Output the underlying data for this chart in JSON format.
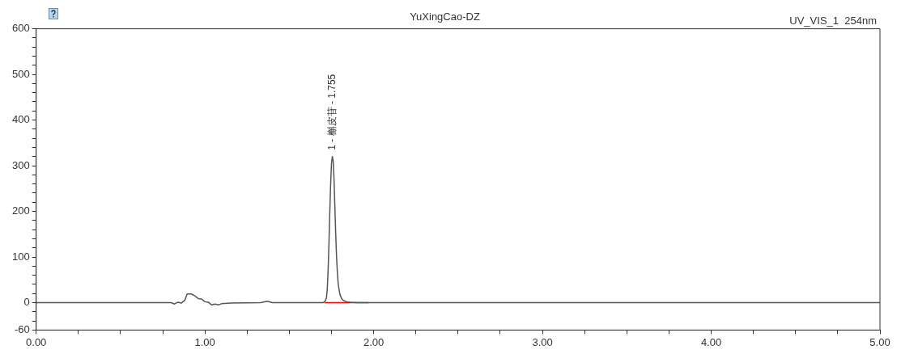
{
  "chart_data": {
    "type": "line",
    "title": "YuXingCao-DZ",
    "annotations": [
      "UV_VIS_1  254nm",
      {
        "text": "1 - 槲皮苷 - 1.755",
        "x": 1.755,
        "y": 320
      }
    ],
    "series": [
      {
        "color": "#555555",
        "x": [
          0,
          0.8,
          0.82,
          0.84,
          0.86,
          0.88,
          0.895,
          0.92,
          0.94,
          0.96,
          0.98,
          1.0,
          1.02,
          1.04,
          1.06,
          1.08,
          1.1,
          1.15,
          1.33,
          1.37,
          1.4,
          1.7,
          1.71,
          1.72,
          1.725,
          1.73,
          1.735,
          1.74,
          1.745,
          1.75,
          1.755,
          1.76,
          1.765,
          1.77,
          1.775,
          1.78,
          1.785,
          1.79,
          1.8,
          1.81,
          1.82,
          1.84,
          1.86,
          1.9,
          5.0
        ],
        "values": [
          0,
          0,
          -3,
          1,
          -1,
          5,
          19,
          19,
          15,
          9,
          8,
          2,
          1,
          -5,
          -3,
          -5,
          -2,
          -1,
          0,
          3,
          0,
          0,
          2,
          10,
          30,
          70,
          130,
          200,
          260,
          305,
          320,
          310,
          270,
          210,
          150,
          100,
          65,
          40,
          18,
          9,
          5,
          2,
          1,
          0,
          0
        ]
      },
      {
        "type": "line",
        "color": "#ff0000",
        "x": [
          1.71,
          1.97
        ],
        "values": [
          0,
          0
        ]
      }
    ],
    "xlim": [
      0,
      5
    ],
    "xticks": [
      {
        "value": 0,
        "label": "0.00"
      },
      {
        "value": 0.25,
        "label": null
      },
      {
        "value": 0.5,
        "label": null
      },
      {
        "value": 0.75,
        "label": null
      },
      {
        "value": 1,
        "label": "1.00"
      },
      {
        "value": 1.25,
        "label": null
      },
      {
        "value": 1.5,
        "label": null
      },
      {
        "value": 1.75,
        "label": null
      },
      {
        "value": 2,
        "label": "2.00"
      },
      {
        "value": 2.25,
        "label": null
      },
      {
        "value": 2.5,
        "label": null
      },
      {
        "value": 2.75,
        "label": null
      },
      {
        "value": 3,
        "label": "3.00"
      },
      {
        "value": 3.25,
        "label": null
      },
      {
        "value": 3.5,
        "label": null
      },
      {
        "value": 3.75,
        "label": null
      },
      {
        "value": 4,
        "label": "4.00"
      },
      {
        "value": 4.25,
        "label": null
      },
      {
        "value": 4.5,
        "label": null
      },
      {
        "value": 4.75,
        "label": null
      },
      {
        "value": 5,
        "label": "5.00"
      }
    ],
    "ylim": [
      -60,
      600
    ],
    "yticks": [
      -60,
      {
        "value": -40,
        "label": null
      },
      {
        "value": -20,
        "label": null
      },
      0,
      {
        "value": 20,
        "label": null
      },
      {
        "value": 40,
        "label": null
      },
      {
        "value": 60,
        "label": null
      },
      {
        "value": 80,
        "label": null
      },
      100,
      {
        "value": 120,
        "label": null
      },
      {
        "value": 140,
        "label": null
      },
      {
        "value": 160,
        "label": null
      },
      {
        "value": 180,
        "label": null
      },
      200,
      {
        "value": 220,
        "label": null
      },
      {
        "value": 240,
        "label": null
      },
      {
        "value": 260,
        "label": null
      },
      {
        "value": 280,
        "label": null
      },
      300,
      {
        "value": 320,
        "label": null
      },
      {
        "value": 340,
        "label": null
      },
      {
        "value": 360,
        "label": null
      },
      {
        "value": 380,
        "label": null
      },
      400,
      {
        "value": 420,
        "label": null
      },
      {
        "value": 440,
        "label": null
      },
      {
        "value": 460,
        "label": null
      },
      {
        "value": 480,
        "label": null
      },
      500,
      {
        "value": 520,
        "label": null
      },
      {
        "value": 540,
        "label": null
      },
      {
        "value": 560,
        "label": null
      },
      {
        "value": 580,
        "label": null
      },
      600
    ],
    "grid": false,
    "legend": false,
    "marker": "none",
    "line_style": "solid"
  }
}
